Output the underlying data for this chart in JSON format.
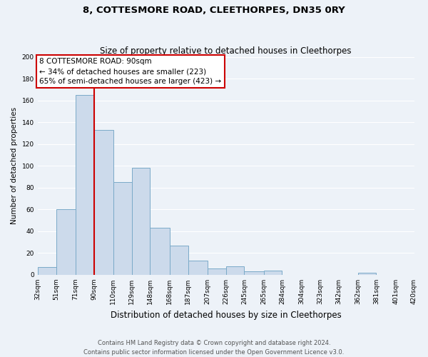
{
  "title": "8, COTTESMORE ROAD, CLEETHORPES, DN35 0RY",
  "subtitle": "Size of property relative to detached houses in Cleethorpes",
  "xlabel": "Distribution of detached houses by size in Cleethorpes",
  "ylabel": "Number of detached properties",
  "bar_values": [
    7,
    60,
    165,
    133,
    85,
    98,
    43,
    27,
    13,
    6,
    8,
    3,
    4,
    0,
    0,
    0,
    0,
    2,
    0,
    0
  ],
  "bin_edges": [
    32,
    51,
    71,
    90,
    110,
    129,
    148,
    168,
    187,
    207,
    226,
    245,
    265,
    284,
    304,
    323,
    342,
    362,
    381,
    401,
    420
  ],
  "bar_color": "#ccdaeb",
  "bar_edge_color": "#7aaac8",
  "vline_x": 90,
  "vline_color": "#cc0000",
  "annotation_title": "8 COTTESMORE ROAD: 90sqm",
  "annotation_line1": "← 34% of detached houses are smaller (223)",
  "annotation_line2": "65% of semi-detached houses are larger (423) →",
  "annotation_box_facecolor": "#ffffff",
  "annotation_box_edgecolor": "#cc0000",
  "ylim": [
    0,
    200
  ],
  "yticks": [
    0,
    20,
    40,
    60,
    80,
    100,
    120,
    140,
    160,
    180,
    200
  ],
  "footer1": "Contains HM Land Registry data © Crown copyright and database right 2024.",
  "footer2": "Contains public sector information licensed under the Open Government Licence v3.0.",
  "bg_color": "#edf2f8",
  "grid_color": "#ffffff",
  "title_fontsize": 9.5,
  "subtitle_fontsize": 8.5,
  "xlabel_fontsize": 8.5,
  "ylabel_fontsize": 7.5,
  "tick_fontsize": 6.5,
  "annotation_fontsize": 7.5,
  "footer_fontsize": 6.0
}
